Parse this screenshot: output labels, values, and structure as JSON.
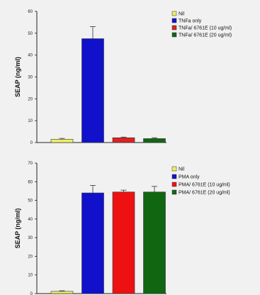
{
  "chart_data": [
    {
      "type": "bar",
      "categories": [
        "Nil",
        "TNFa only",
        "TNFa/ 6761E (10 ug/ml)",
        "TNFa/ 6761E (20 ug/ml)"
      ],
      "values": [
        1.5,
        47.5,
        2.2,
        1.8
      ],
      "errors": [
        0.4,
        5.5,
        0.3,
        0.4
      ],
      "colors": [
        "#eeee66",
        "#1111cc",
        "#dd2222",
        "#116611"
      ],
      "title": "",
      "xlabel": "",
      "ylabel": "SEAP (ng/ml)",
      "ylim": [
        0,
        60
      ],
      "yticks": [
        "0",
        "10",
        "20",
        "30",
        "40",
        "50",
        "60"
      ],
      "legend": {
        "position": "right",
        "entries": [
          "Nil",
          "TNFa only",
          "TNFa/ 6761E (10 ug/ml)",
          "TNFa/ 6761E (20 ug/ml)"
        ]
      },
      "grid": false
    },
    {
      "type": "bar",
      "categories": [
        "Nil",
        "PMA only",
        "PMA/ 6761E (10 ug/ml)",
        "PMA/ 6761E (20 ug/ml)"
      ],
      "values": [
        1.2,
        54.0,
        54.5,
        54.5
      ],
      "errors": [
        0.3,
        4.0,
        1.0,
        3.0
      ],
      "colors": [
        "#eeee66",
        "#1111cc",
        "#ee1111",
        "#116611"
      ],
      "title": "",
      "xlabel": "",
      "ylabel": "SEAP (ng/ml)",
      "ylim": [
        0,
        70
      ],
      "yticks": [
        "0",
        "10",
        "20",
        "30",
        "40",
        "50",
        "60",
        "70"
      ],
      "legend": {
        "position": "right",
        "entries": [
          "Nil",
          "PMA only",
          "PMA/ 6761E (10 ug/ml)",
          "PMA/ 6761E (20 ug/ml)"
        ]
      },
      "grid": false
    }
  ]
}
